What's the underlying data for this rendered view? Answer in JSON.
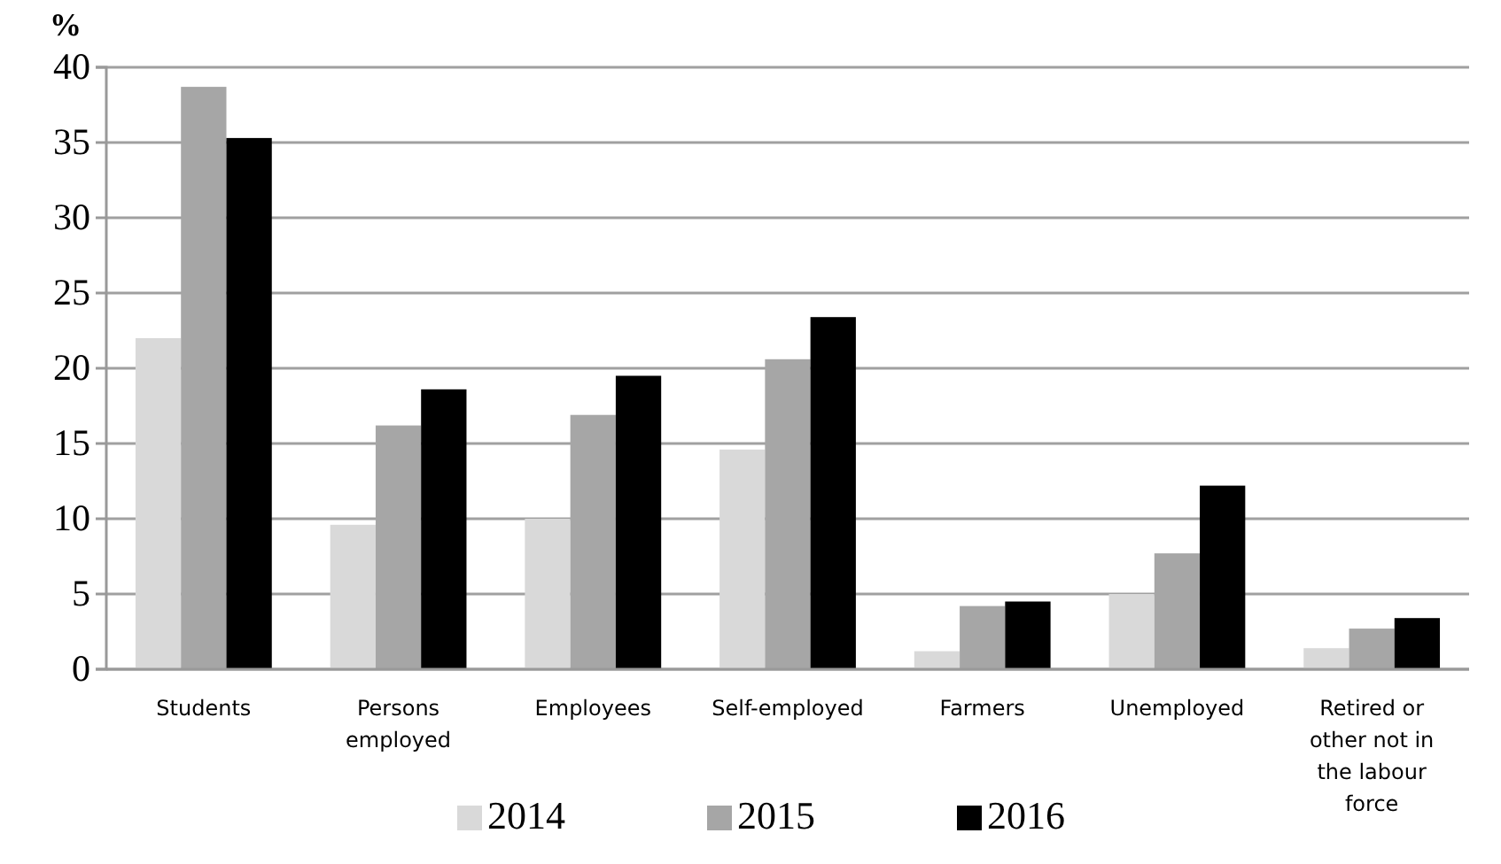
{
  "chart_data": {
    "type": "bar",
    "ylabel": "%",
    "categories": [
      "Students",
      "Persons employed",
      "Employees",
      "Self-employed",
      "Farmers",
      "Unemployed",
      "Retired or other not in the labour force"
    ],
    "series": [
      {
        "name": "2014",
        "color": "#d9d9d9",
        "values": [
          22.0,
          9.6,
          10.0,
          14.6,
          1.2,
          5.0,
          1.4
        ]
      },
      {
        "name": "2015",
        "color": "#a6a6a6",
        "values": [
          38.7,
          16.2,
          16.9,
          20.6,
          4.2,
          7.7,
          2.7
        ]
      },
      {
        "name": "2016",
        "color": "#000000",
        "values": [
          35.3,
          18.6,
          19.5,
          23.4,
          4.5,
          12.2,
          3.4
        ]
      }
    ],
    "ylim": [
      0,
      40
    ],
    "yticks": [
      0,
      5,
      10,
      15,
      20,
      25,
      30,
      35,
      40
    ],
    "grid": "y",
    "legend": "bottom"
  }
}
